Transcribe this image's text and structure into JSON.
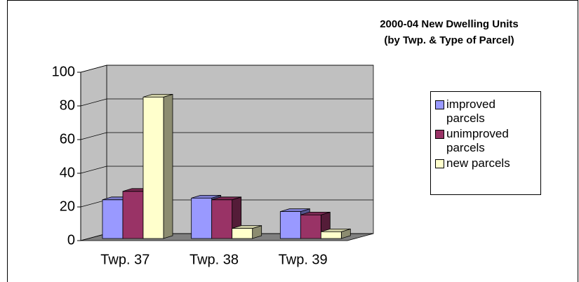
{
  "chart_data": {
    "type": "bar3d",
    "title": "2000-04 New Dwelling Units",
    "subtitle": "(by Twp. & Type of Parcel)",
    "categories": [
      "Twp. 37",
      "Twp. 38",
      "Twp. 39"
    ],
    "series": [
      {
        "name": "improved parcels",
        "color": "#9999ff",
        "values": [
          23,
          24,
          16
        ]
      },
      {
        "name": "unimproved parcels",
        "color": "#993366",
        "values": [
          28,
          23,
          14
        ]
      },
      {
        "name": "new parcels",
        "color": "#ffffcc",
        "values": [
          84,
          6,
          4
        ]
      }
    ],
    "ylim": [
      0,
      100
    ],
    "yticks": [
      0,
      20,
      40,
      60,
      80,
      100
    ],
    "grid": true,
    "legend": "right"
  }
}
